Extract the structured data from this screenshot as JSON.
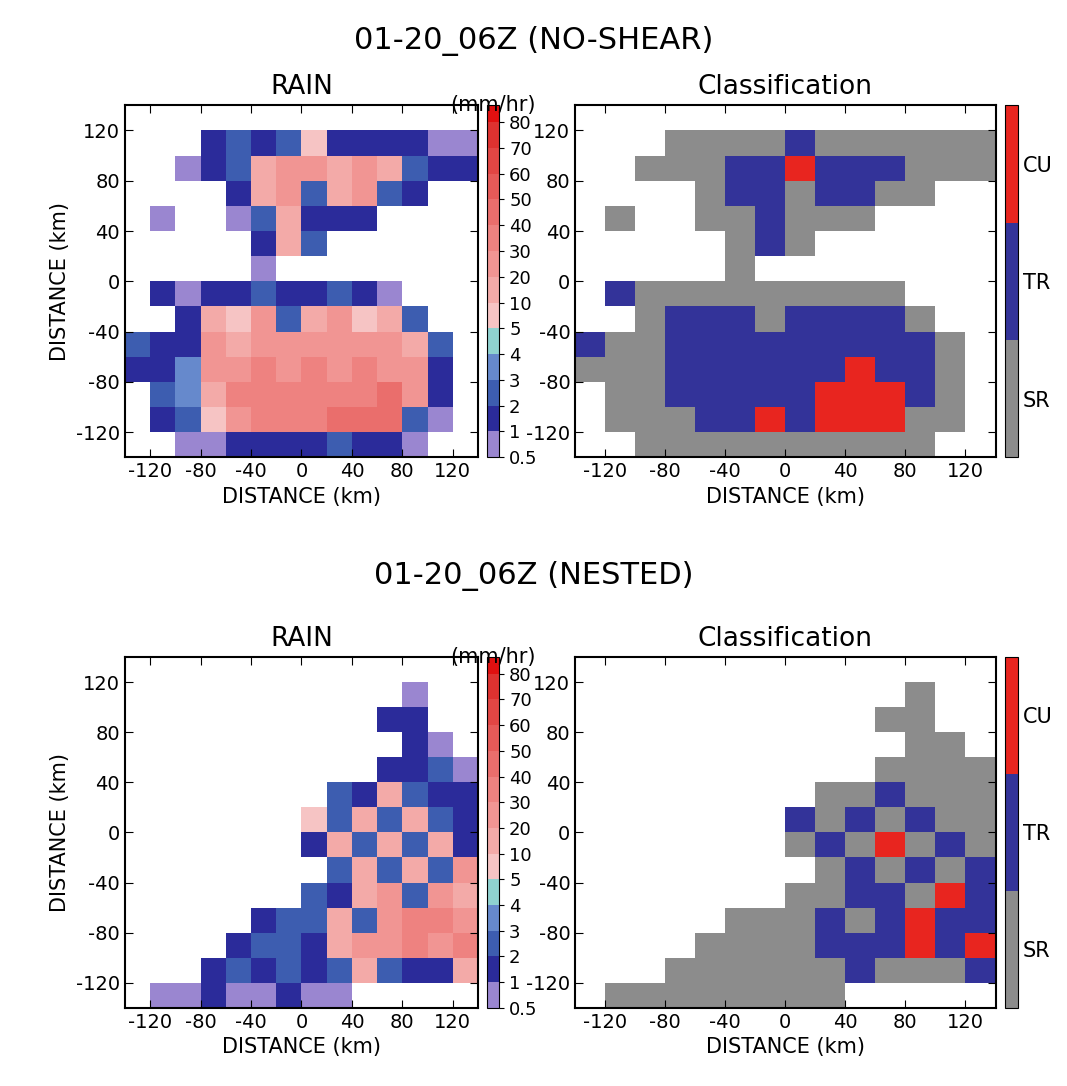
{
  "panel_titles": [
    "01-20_06Z (NO-SHEAR)",
    "01-20_06Z (NESTED)"
  ],
  "chart_data": [
    {
      "type": "heatmap",
      "title": "RAIN",
      "xlabel": "DISTANCE (km)",
      "ylabel": "DISTANCE (km)",
      "xlim": [
        -140,
        140
      ],
      "ylim": [
        -140,
        140
      ],
      "xticks": [
        -120,
        -80,
        -40,
        0,
        40,
        80,
        120
      ],
      "yticks": [
        -120,
        -80,
        -40,
        0,
        40,
        80,
        120
      ],
      "x": [
        -130,
        -110,
        -90,
        -70,
        -50,
        -30,
        -10,
        10,
        30,
        50,
        70,
        90,
        110,
        130
      ],
      "y": [
        130,
        110,
        90,
        70,
        50,
        30,
        10,
        -10,
        -30,
        -50,
        -70,
        -90,
        -110,
        -130
      ],
      "cells": [
        [
          null,
          null,
          null,
          null,
          null,
          null,
          null,
          null,
          null,
          null,
          null,
          null,
          null,
          null
        ],
        [
          null,
          null,
          null,
          1,
          2,
          1,
          2,
          5,
          1,
          1,
          1,
          1,
          0.5,
          0.5
        ],
        [
          null,
          null,
          0.5,
          1,
          2,
          10,
          20,
          20,
          10,
          20,
          10,
          2,
          1,
          1
        ],
        [
          null,
          null,
          null,
          null,
          1,
          10,
          20,
          2,
          10,
          20,
          2,
          1,
          null,
          null
        ],
        [
          null,
          0.5,
          null,
          null,
          0.5,
          2,
          10,
          1,
          1,
          1,
          null,
          null,
          null,
          null
        ],
        [
          null,
          null,
          null,
          null,
          null,
          1,
          10,
          2,
          null,
          null,
          null,
          null,
          null,
          null
        ],
        [
          null,
          null,
          null,
          null,
          null,
          0.5,
          null,
          null,
          null,
          null,
          null,
          null,
          null,
          null
        ],
        [
          null,
          1,
          0.5,
          1,
          1,
          2,
          1,
          1,
          2,
          1,
          0.5,
          null,
          null,
          null
        ],
        [
          null,
          null,
          1,
          10,
          5,
          20,
          2,
          10,
          20,
          5,
          10,
          2,
          null,
          null
        ],
        [
          2,
          1,
          1,
          20,
          10,
          20,
          20,
          20,
          20,
          20,
          20,
          10,
          2,
          null
        ],
        [
          1,
          1,
          3,
          20,
          20,
          30,
          20,
          30,
          20,
          30,
          20,
          20,
          1,
          null
        ],
        [
          null,
          2,
          3,
          10,
          30,
          30,
          30,
          30,
          30,
          30,
          40,
          20,
          1,
          null
        ],
        [
          null,
          1,
          2,
          5,
          20,
          30,
          30,
          30,
          40,
          40,
          40,
          2,
          0.5,
          null
        ],
        [
          null,
          null,
          0.5,
          0.5,
          1,
          1,
          1,
          1,
          2,
          1,
          1,
          0.5,
          null,
          null
        ]
      ],
      "colorbar": {
        "label": "(mm/hr)",
        "ticks": [
          0.5,
          1,
          2,
          3,
          4,
          5,
          10,
          20,
          30,
          40,
          50,
          60,
          70,
          80
        ],
        "colors": [
          "#9a86d0",
          "#2b2b9a",
          "#3d5db0",
          "#6689cc",
          "#8fd2d0",
          "#f6c4c4",
          "#f3aaa8",
          "#f19593",
          "#ee8280",
          "#ea6e6c",
          "#e65a58",
          "#e24644",
          "#de3230",
          "#e01010"
        ]
      }
    },
    {
      "type": "heatmap",
      "title": "Classification",
      "xlabel": "DISTANCE (km)",
      "xlim": [
        -140,
        140
      ],
      "ylim": [
        -140,
        140
      ],
      "xticks": [
        -120,
        -80,
        -40,
        0,
        40,
        80,
        120
      ],
      "yticks": [
        -120,
        -80,
        -40,
        0,
        40,
        80,
        120
      ],
      "x": [
        -130,
        -110,
        -90,
        -70,
        -50,
        -30,
        -10,
        10,
        30,
        50,
        70,
        90,
        110,
        130
      ],
      "y": [
        130,
        110,
        90,
        70,
        50,
        30,
        10,
        -10,
        -30,
        -50,
        -70,
        -90,
        -110,
        -130
      ],
      "cells": [
        [
          null,
          null,
          null,
          null,
          null,
          null,
          null,
          null,
          null,
          null,
          null,
          null,
          null,
          null
        ],
        [
          null,
          null,
          null,
          0,
          0,
          0,
          0,
          1,
          0,
          0,
          0,
          0,
          0,
          0
        ],
        [
          null,
          null,
          0,
          0,
          0,
          1,
          1,
          2,
          1,
          1,
          1,
          0,
          0,
          0
        ],
        [
          null,
          null,
          null,
          null,
          0,
          1,
          1,
          0,
          1,
          1,
          0,
          0,
          null,
          null
        ],
        [
          null,
          0,
          null,
          null,
          0,
          0,
          1,
          0,
          0,
          0,
          null,
          null,
          null,
          null
        ],
        [
          null,
          null,
          null,
          null,
          null,
          0,
          1,
          0,
          null,
          null,
          null,
          null,
          null,
          null
        ],
        [
          null,
          null,
          null,
          null,
          null,
          0,
          null,
          null,
          null,
          null,
          null,
          null,
          null,
          null
        ],
        [
          null,
          1,
          0,
          0,
          0,
          0,
          0,
          0,
          0,
          0,
          0,
          null,
          null,
          null
        ],
        [
          null,
          null,
          0,
          1,
          1,
          1,
          0,
          1,
          1,
          1,
          1,
          0,
          null,
          null
        ],
        [
          1,
          0,
          0,
          1,
          1,
          1,
          1,
          1,
          1,
          1,
          1,
          1,
          0,
          null
        ],
        [
          0,
          0,
          0,
          1,
          1,
          1,
          1,
          1,
          1,
          2,
          1,
          1,
          0,
          null
        ],
        [
          null,
          0,
          0,
          1,
          1,
          1,
          1,
          1,
          2,
          2,
          2,
          1,
          0,
          null
        ],
        [
          null,
          0,
          0,
          0,
          1,
          1,
          2,
          1,
          2,
          2,
          2,
          0,
          0,
          null
        ],
        [
          null,
          null,
          0,
          0,
          0,
          0,
          0,
          0,
          0,
          0,
          0,
          0,
          null,
          null
        ]
      ],
      "colorbar": {
        "categories": [
          "SR",
          "TR",
          "CU"
        ],
        "colors": [
          "#8c8c8c",
          "#333399",
          "#e8251f"
        ]
      }
    },
    {
      "type": "heatmap",
      "title": "RAIN",
      "xlabel": "DISTANCE (km)",
      "ylabel": "DISTANCE (km)",
      "xlim": [
        -140,
        140
      ],
      "ylim": [
        -140,
        140
      ],
      "xticks": [
        -120,
        -80,
        -40,
        0,
        40,
        80,
        120
      ],
      "yticks": [
        -120,
        -80,
        -40,
        0,
        40,
        80,
        120
      ],
      "x": [
        -130,
        -110,
        -90,
        -70,
        -50,
        -30,
        -10,
        10,
        30,
        50,
        70,
        90,
        110,
        130
      ],
      "y": [
        130,
        110,
        90,
        70,
        50,
        30,
        10,
        -10,
        -30,
        -50,
        -70,
        -90,
        -110,
        -130
      ],
      "cells": [
        [
          null,
          null,
          null,
          null,
          null,
          null,
          null,
          null,
          null,
          null,
          null,
          null,
          null,
          null
        ],
        [
          null,
          null,
          null,
          null,
          null,
          null,
          null,
          null,
          null,
          null,
          null,
          0.5,
          null,
          null
        ],
        [
          null,
          null,
          null,
          null,
          null,
          null,
          null,
          null,
          null,
          null,
          1,
          1,
          null,
          null
        ],
        [
          null,
          null,
          null,
          null,
          null,
          null,
          null,
          null,
          null,
          null,
          null,
          1,
          0.5,
          null
        ],
        [
          null,
          null,
          null,
          null,
          null,
          null,
          null,
          null,
          null,
          null,
          1,
          1,
          2,
          0.5
        ],
        [
          null,
          null,
          null,
          null,
          null,
          null,
          null,
          null,
          2,
          1,
          10,
          2,
          1,
          1
        ],
        [
          null,
          null,
          null,
          null,
          null,
          null,
          null,
          5,
          2,
          10,
          2,
          10,
          2,
          1
        ],
        [
          null,
          null,
          null,
          null,
          null,
          null,
          null,
          1,
          10,
          2,
          10,
          2,
          10,
          1
        ],
        [
          null,
          null,
          null,
          null,
          null,
          null,
          null,
          null,
          2,
          10,
          2,
          10,
          2,
          20
        ],
        [
          null,
          null,
          null,
          null,
          null,
          null,
          null,
          2,
          1,
          10,
          20,
          2,
          20,
          10
        ],
        [
          null,
          null,
          null,
          null,
          null,
          1,
          2,
          2,
          10,
          2,
          20,
          30,
          30,
          20
        ],
        [
          null,
          null,
          null,
          null,
          1,
          2,
          2,
          1,
          10,
          20,
          20,
          30,
          20,
          30
        ],
        [
          null,
          null,
          null,
          1,
          2,
          1,
          2,
          1,
          2,
          10,
          2,
          1,
          1,
          10
        ],
        [
          null,
          0.5,
          0.5,
          1,
          0.5,
          0.5,
          1,
          0.5,
          0.5,
          null,
          null,
          null,
          null,
          null
        ]
      ],
      "colorbar": {
        "label": "(mm/hr)",
        "ticks": [
          0.5,
          1,
          2,
          3,
          4,
          5,
          10,
          20,
          30,
          40,
          50,
          60,
          70,
          80
        ],
        "colors": [
          "#9a86d0",
          "#2b2b9a",
          "#3d5db0",
          "#6689cc",
          "#8fd2d0",
          "#f6c4c4",
          "#f3aaa8",
          "#f19593",
          "#ee8280",
          "#ea6e6c",
          "#e65a58",
          "#e24644",
          "#de3230",
          "#e01010"
        ]
      }
    },
    {
      "type": "heatmap",
      "title": "Classification",
      "xlabel": "DISTANCE (km)",
      "xlim": [
        -140,
        140
      ],
      "ylim": [
        -140,
        140
      ],
      "xticks": [
        -120,
        -80,
        -40,
        0,
        40,
        80,
        120
      ],
      "yticks": [
        -120,
        -80,
        -40,
        0,
        40,
        80,
        120
      ],
      "x": [
        -130,
        -110,
        -90,
        -70,
        -50,
        -30,
        -10,
        10,
        30,
        50,
        70,
        90,
        110,
        130
      ],
      "y": [
        130,
        110,
        90,
        70,
        50,
        30,
        10,
        -10,
        -30,
        -50,
        -70,
        -90,
        -110,
        -130
      ],
      "cells": [
        [
          null,
          null,
          null,
          null,
          null,
          null,
          null,
          null,
          null,
          null,
          null,
          null,
          null,
          null
        ],
        [
          null,
          null,
          null,
          null,
          null,
          null,
          null,
          null,
          null,
          null,
          null,
          0,
          null,
          null
        ],
        [
          null,
          null,
          null,
          null,
          null,
          null,
          null,
          null,
          null,
          null,
          0,
          0,
          null,
          null
        ],
        [
          null,
          null,
          null,
          null,
          null,
          null,
          null,
          null,
          null,
          null,
          null,
          0,
          0,
          null
        ],
        [
          null,
          null,
          null,
          null,
          null,
          null,
          null,
          null,
          null,
          null,
          0,
          0,
          0,
          0
        ],
        [
          null,
          null,
          null,
          null,
          null,
          null,
          null,
          null,
          0,
          0,
          1,
          0,
          0,
          0
        ],
        [
          null,
          null,
          null,
          null,
          null,
          null,
          null,
          1,
          0,
          1,
          0,
          1,
          0,
          0
        ],
        [
          null,
          null,
          null,
          null,
          null,
          null,
          null,
          0,
          1,
          0,
          2,
          0,
          1,
          0
        ],
        [
          null,
          null,
          null,
          null,
          null,
          null,
          null,
          null,
          0,
          1,
          0,
          1,
          0,
          1
        ],
        [
          null,
          null,
          null,
          null,
          null,
          null,
          null,
          0,
          0,
          1,
          1,
          0,
          2,
          1
        ],
        [
          null,
          null,
          null,
          null,
          null,
          0,
          0,
          0,
          1,
          0,
          1,
          2,
          1,
          1
        ],
        [
          null,
          null,
          null,
          null,
          0,
          0,
          0,
          0,
          1,
          1,
          1,
          2,
          1,
          2
        ],
        [
          null,
          null,
          null,
          0,
          0,
          0,
          0,
          0,
          0,
          1,
          0,
          0,
          0,
          1
        ],
        [
          null,
          0,
          0,
          0,
          0,
          0,
          0,
          0,
          0,
          null,
          null,
          null,
          null,
          null
        ]
      ],
      "colorbar": {
        "categories": [
          "SR",
          "TR",
          "CU"
        ],
        "colors": [
          "#8c8c8c",
          "#333399",
          "#e8251f"
        ]
      }
    }
  ]
}
